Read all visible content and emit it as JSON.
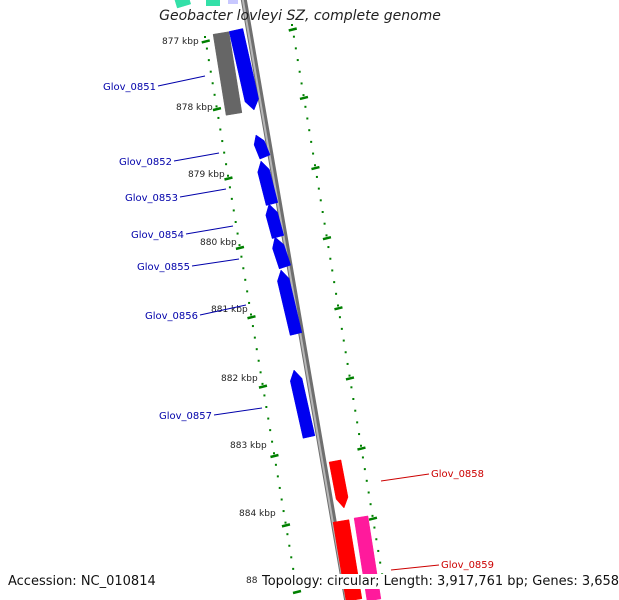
{
  "title": "Geobacter lovleyi SZ, complete genome",
  "footer": {
    "accession": "Accession: NC_010814",
    "summary": "Topology: circular; Length: 3,917,761 bp; Genes: 3,658",
    "ruler_peek": "88"
  },
  "colors": {
    "ruler_tick": "#008000",
    "axis_line": "#8c8c8c",
    "gene_blue": "#0000f0",
    "gene_gray": "#666666",
    "gene_red": "#ff0000",
    "gene_pink": "#ff1a9c",
    "gene_teal": "#33e0a8",
    "label_blue": "#0000aa",
    "label_red": "#cc0000"
  },
  "ruler": {
    "unit": "kbp",
    "labels": [
      "877 kbp",
      "878 kbp",
      "879 kbp",
      "880 kbp",
      "881 kbp",
      "882 kbp",
      "883 kbp",
      "884 kbp"
    ]
  },
  "genes": [
    {
      "id": "Glov_0851",
      "strand": "forward",
      "color": "gray"
    },
    {
      "id": "",
      "strand": "reverse",
      "color": "blue"
    },
    {
      "id": "Glov_0852",
      "strand": "forward",
      "color": "blue"
    },
    {
      "id": "Glov_0853",
      "strand": "forward",
      "color": "blue"
    },
    {
      "id": "Glov_0854",
      "strand": "forward",
      "color": "blue"
    },
    {
      "id": "Glov_0855",
      "strand": "forward",
      "color": "blue"
    },
    {
      "id": "Glov_0856",
      "strand": "forward",
      "color": "blue"
    },
    {
      "id": "Glov_0857",
      "strand": "forward",
      "color": "blue"
    },
    {
      "id": "Glov_0858",
      "strand": "reverse",
      "color": "red"
    },
    {
      "id": "Glov_0859",
      "strand": "reverse",
      "color": "red"
    },
    {
      "id": "",
      "strand": "reverse",
      "color": "pink"
    },
    {
      "id": "",
      "strand": "forward",
      "color": "teal"
    }
  ]
}
